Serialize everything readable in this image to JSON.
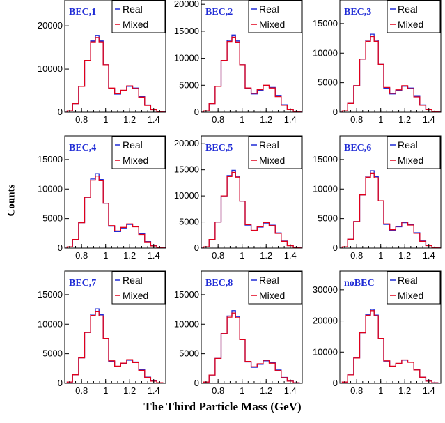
{
  "figure": {
    "ylabel": "Counts",
    "xlabel": "The Third Particle Mass (GeV)"
  },
  "chart_data": [
    {
      "type": "line",
      "title": "BEC,1",
      "xlim": [
        0.66,
        1.5
      ],
      "ylim": [
        0,
        26000
      ],
      "xticks": [
        0.8,
        1,
        1.2,
        1.4
      ],
      "yticks": [
        0,
        10000,
        20000
      ],
      "x": [
        0.66,
        0.7,
        0.75,
        0.8,
        0.85,
        0.9,
        0.93,
        0.96,
        1.0,
        1.05,
        1.1,
        1.15,
        1.2,
        1.25,
        1.3,
        1.35,
        1.4,
        1.45,
        1.5
      ],
      "series": [
        {
          "name": "Real",
          "color": "#1f2bd6",
          "values": [
            0,
            300,
            2000,
            6000,
            12000,
            16500,
            17800,
            16500,
            11000,
            5500,
            4200,
            5000,
            6000,
            5600,
            3600,
            1700,
            600,
            150,
            30
          ]
        },
        {
          "name": "Mixed",
          "color": "#e0001b",
          "values": [
            0,
            300,
            2000,
            6000,
            12000,
            16300,
            17300,
            16300,
            11000,
            5600,
            4300,
            5100,
            6100,
            5500,
            3500,
            1600,
            560,
            140,
            30
          ]
        }
      ]
    },
    {
      "type": "line",
      "title": "BEC,2",
      "xlim": [
        0.66,
        1.5
      ],
      "ylim": [
        0,
        20800
      ],
      "xticks": [
        0.8,
        1,
        1.2,
        1.4
      ],
      "yticks": [
        0,
        5000,
        10000,
        15000,
        20000
      ],
      "x": [
        0.66,
        0.7,
        0.75,
        0.8,
        0.85,
        0.9,
        0.93,
        0.96,
        1.0,
        1.05,
        1.1,
        1.15,
        1.2,
        1.25,
        1.3,
        1.35,
        1.4,
        1.45,
        1.5
      ],
      "series": [
        {
          "name": "Real",
          "color": "#1f2bd6",
          "values": [
            0,
            250,
            1600,
            4800,
            9600,
            13300,
            14300,
            13200,
            8800,
            4400,
            3400,
            4100,
            4900,
            4600,
            3000,
            1400,
            500,
            120,
            25
          ]
        },
        {
          "name": "Mixed",
          "color": "#e0001b",
          "values": [
            0,
            250,
            1600,
            4800,
            9600,
            13100,
            13900,
            13000,
            8800,
            4500,
            3500,
            4200,
            5000,
            4500,
            2900,
            1300,
            470,
            110,
            25
          ]
        }
      ]
    },
    {
      "type": "line",
      "title": "BEC,3",
      "xlim": [
        0.66,
        1.5
      ],
      "ylim": [
        0,
        19000
      ],
      "xticks": [
        0.8,
        1,
        1.2,
        1.4
      ],
      "yticks": [
        0,
        5000,
        10000,
        15000
      ],
      "x": [
        0.66,
        0.7,
        0.75,
        0.8,
        0.85,
        0.9,
        0.93,
        0.96,
        1.0,
        1.05,
        1.1,
        1.15,
        1.2,
        1.25,
        1.3,
        1.35,
        1.4,
        1.45,
        1.5
      ],
      "series": [
        {
          "name": "Real",
          "color": "#1f2bd6",
          "values": [
            0,
            230,
            1500,
            4500,
            9000,
            12200,
            13200,
            12200,
            8100,
            4100,
            3100,
            3700,
            4400,
            4100,
            2700,
            1250,
            450,
            110,
            20
          ]
        },
        {
          "name": "Mixed",
          "color": "#e0001b",
          "values": [
            0,
            230,
            1500,
            4500,
            9000,
            12000,
            12800,
            12000,
            8100,
            4200,
            3200,
            3800,
            4500,
            4000,
            2600,
            1200,
            420,
            100,
            20
          ]
        }
      ]
    },
    {
      "type": "line",
      "title": "BEC,4",
      "xlim": [
        0.66,
        1.5
      ],
      "ylim": [
        0,
        19000
      ],
      "xticks": [
        0.8,
        1,
        1.2,
        1.4
      ],
      "yticks": [
        0,
        5000,
        10000,
        15000
      ],
      "x": [
        0.66,
        0.7,
        0.75,
        0.8,
        0.85,
        0.9,
        0.93,
        0.96,
        1.0,
        1.05,
        1.1,
        1.15,
        1.2,
        1.25,
        1.3,
        1.35,
        1.4,
        1.45,
        1.5
      ],
      "series": [
        {
          "name": "Real",
          "color": "#1f2bd6",
          "values": [
            0,
            220,
            1450,
            4300,
            8600,
            11700,
            12600,
            11600,
            7600,
            3700,
            2800,
            3400,
            4000,
            3700,
            2400,
            1100,
            400,
            100,
            20
          ]
        },
        {
          "name": "Mixed",
          "color": "#e0001b",
          "values": [
            0,
            220,
            1450,
            4300,
            8600,
            11500,
            12200,
            11400,
            7600,
            3800,
            2900,
            3500,
            4100,
            3600,
            2300,
            1050,
            380,
            90,
            20
          ]
        }
      ]
    },
    {
      "type": "line",
      "title": "BEC,5",
      "xlim": [
        0.66,
        1.5
      ],
      "ylim": [
        0,
        21500
      ],
      "xticks": [
        0.8,
        1,
        1.2,
        1.4
      ],
      "yticks": [
        0,
        5000,
        10000,
        15000,
        20000
      ],
      "x": [
        0.66,
        0.7,
        0.75,
        0.8,
        0.85,
        0.9,
        0.93,
        0.96,
        1.0,
        1.05,
        1.1,
        1.15,
        1.2,
        1.25,
        1.3,
        1.35,
        1.4,
        1.45,
        1.5
      ],
      "series": [
        {
          "name": "Real",
          "color": "#1f2bd6",
          "values": [
            0,
            260,
            1650,
            5000,
            10000,
            13900,
            14900,
            13800,
            9000,
            4400,
            3300,
            4000,
            4800,
            4400,
            2900,
            1350,
            480,
            120,
            25
          ]
        },
        {
          "name": "Mixed",
          "color": "#e0001b",
          "values": [
            0,
            260,
            1650,
            5000,
            10000,
            13700,
            14500,
            13600,
            9000,
            4500,
            3400,
            4100,
            4900,
            4300,
            2800,
            1300,
            450,
            110,
            25
          ]
        }
      ]
    },
    {
      "type": "line",
      "title": "BEC,6",
      "xlim": [
        0.66,
        1.5
      ],
      "ylim": [
        0,
        19000
      ],
      "xticks": [
        0.8,
        1,
        1.2,
        1.4
      ],
      "yticks": [
        0,
        5000,
        10000,
        15000
      ],
      "x": [
        0.66,
        0.7,
        0.75,
        0.8,
        0.85,
        0.9,
        0.93,
        0.96,
        1.0,
        1.05,
        1.1,
        1.15,
        1.2,
        1.25,
        1.3,
        1.35,
        1.4,
        1.45,
        1.5
      ],
      "series": [
        {
          "name": "Real",
          "color": "#1f2bd6",
          "values": [
            0,
            230,
            1500,
            4500,
            9000,
            12200,
            13100,
            12100,
            8000,
            4000,
            3000,
            3600,
            4300,
            4000,
            2600,
            1200,
            440,
            105,
            20
          ]
        },
        {
          "name": "Mixed",
          "color": "#e0001b",
          "values": [
            0,
            230,
            1500,
            4500,
            9000,
            12000,
            12700,
            11900,
            8000,
            4100,
            3100,
            3700,
            4400,
            3900,
            2500,
            1150,
            410,
            95,
            20
          ]
        }
      ]
    },
    {
      "type": "line",
      "title": "BEC,7",
      "xlim": [
        0.66,
        1.5
      ],
      "ylim": [
        0,
        19000
      ],
      "xticks": [
        0.8,
        1,
        1.2,
        1.4
      ],
      "yticks": [
        0,
        5000,
        10000,
        15000
      ],
      "x": [
        0.66,
        0.7,
        0.75,
        0.8,
        0.85,
        0.9,
        0.93,
        0.96,
        1.0,
        1.05,
        1.1,
        1.15,
        1.2,
        1.25,
        1.3,
        1.35,
        1.4,
        1.45,
        1.5
      ],
      "series": [
        {
          "name": "Real",
          "color": "#1f2bd6",
          "values": [
            0,
            220,
            1450,
            4300,
            8600,
            11700,
            12600,
            11600,
            7600,
            3700,
            2800,
            3300,
            3900,
            3600,
            2300,
            1050,
            390,
            95,
            20
          ]
        },
        {
          "name": "Mixed",
          "color": "#e0001b",
          "values": [
            0,
            220,
            1450,
            4300,
            8600,
            11500,
            12200,
            11400,
            7600,
            3800,
            2900,
            3400,
            4000,
            3500,
            2200,
            1000,
            370,
            90,
            20
          ]
        }
      ]
    },
    {
      "type": "line",
      "title": "BEC,8",
      "xlim": [
        0.66,
        1.5
      ],
      "ylim": [
        0,
        19000
      ],
      "xticks": [
        0.8,
        1,
        1.2,
        1.4
      ],
      "yticks": [
        0,
        5000,
        10000,
        15000
      ],
      "x": [
        0.66,
        0.7,
        0.75,
        0.8,
        0.85,
        0.9,
        0.93,
        0.96,
        1.0,
        1.05,
        1.1,
        1.15,
        1.2,
        1.25,
        1.3,
        1.35,
        1.4,
        1.45,
        1.5
      ],
      "series": [
        {
          "name": "Real",
          "color": "#1f2bd6",
          "values": [
            0,
            210,
            1400,
            4200,
            8400,
            11400,
            12300,
            11300,
            7400,
            3600,
            2700,
            3200,
            3800,
            3500,
            2250,
            1000,
            380,
            90,
            20
          ]
        },
        {
          "name": "Mixed",
          "color": "#e0001b",
          "values": [
            0,
            210,
            1400,
            4200,
            8400,
            11200,
            11900,
            11100,
            7400,
            3700,
            2800,
            3300,
            3900,
            3400,
            2150,
            960,
            360,
            85,
            20
          ]
        }
      ]
    },
    {
      "type": "line",
      "title": "noBEC",
      "xlim": [
        0.66,
        1.5
      ],
      "ylim": [
        0,
        36000
      ],
      "xticks": [
        0.8,
        1,
        1.2,
        1.4
      ],
      "yticks": [
        0,
        10000,
        20000,
        30000
      ],
      "x": [
        0.66,
        0.7,
        0.75,
        0.8,
        0.85,
        0.9,
        0.93,
        0.96,
        1.0,
        1.05,
        1.1,
        1.15,
        1.2,
        1.25,
        1.3,
        1.35,
        1.4,
        1.45,
        1.5
      ],
      "series": [
        {
          "name": "Real",
          "color": "#1f2bd6",
          "values": [
            0,
            400,
            2700,
            8100,
            16200,
            22100,
            23700,
            21900,
            14400,
            7100,
            5400,
            6300,
            7400,
            6800,
            4400,
            2000,
            720,
            170,
            35
          ]
        },
        {
          "name": "Mixed",
          "color": "#e0001b",
          "values": [
            0,
            400,
            2700,
            8100,
            16200,
            21800,
            23300,
            21700,
            14400,
            7200,
            5500,
            6400,
            7500,
            6700,
            4300,
            1950,
            700,
            165,
            35
          ]
        }
      ]
    }
  ]
}
